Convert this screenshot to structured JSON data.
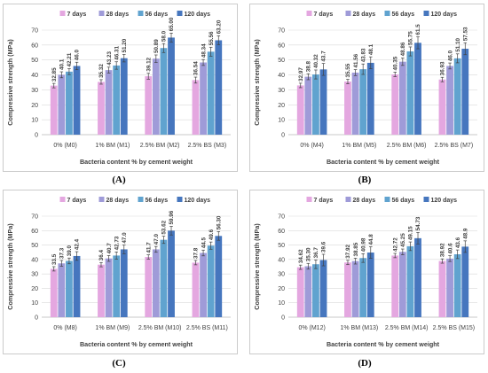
{
  "colors": {
    "7 days": "#e4a7e0",
    "28 days": "#9f9bd8",
    "56 days": "#60a3cf",
    "120 days": "#4676be"
  },
  "chart_data": [
    {
      "id": "A",
      "type": "bar",
      "caption": "(A)",
      "ylabel": "Compressive strength (MPa)",
      "xlabel": "Bacteria content % by cement weight",
      "ylim": [
        0,
        70
      ],
      "yticks": [
        0,
        10,
        20,
        30,
        40,
        50,
        60,
        70
      ],
      "grid": true,
      "legend": "top",
      "categories": [
        "0% (M0)",
        "1% BM (M1)",
        "2.5% BM (M2)",
        "2.5% BS (M3)"
      ],
      "series": [
        {
          "name": "7 days",
          "values": [
            32.85,
            35.32,
            39.12,
            36.54
          ],
          "labels": [
            "32.85",
            "35.32",
            "39.12",
            "36.54"
          ],
          "err": [
            1.5,
            1.5,
            2.0,
            2.0
          ]
        },
        {
          "name": "28 days",
          "values": [
            40.1,
            43.23,
            50.89,
            48.34
          ],
          "labels": [
            "40.1",
            "43.23",
            "50.89",
            "48.34"
          ],
          "err": [
            2.0,
            2.0,
            2.5,
            2.0
          ]
        },
        {
          "name": "56 days",
          "values": [
            42.21,
            46.31,
            58.0,
            55.56
          ],
          "labels": [
            "42.21",
            "46.31",
            "58.0",
            "55.56"
          ],
          "err": [
            2.0,
            2.5,
            3.0,
            3.0
          ]
        },
        {
          "name": "120 days",
          "values": [
            46.0,
            51.2,
            65.0,
            63.2
          ],
          "labels": [
            "46.0",
            "51.20",
            "65.00",
            "63.20"
          ],
          "err": [
            2.5,
            2.5,
            3.0,
            3.0
          ]
        }
      ]
    },
    {
      "id": "B",
      "type": "bar",
      "caption": "(B)",
      "ylabel": "Compressive strength (MPa)",
      "xlabel": "Bacteria content % by cement weight",
      "ylim": [
        0,
        70
      ],
      "yticks": [
        0,
        10,
        20,
        30,
        40,
        50,
        60,
        70
      ],
      "grid": true,
      "legend": "top",
      "categories": [
        "0% (M4)",
        "1% BM (M5)",
        "2.5% BM (M6)",
        "2.5% BS (M7)"
      ],
      "series": [
        {
          "name": "7 days",
          "values": [
            32.97,
            35.55,
            40.35,
            36.93
          ],
          "labels": [
            "32.97",
            "35.55",
            "40.35",
            "36.93"
          ],
          "err": [
            1.5,
            1.5,
            1.5,
            1.5
          ]
        },
        {
          "name": "28 days",
          "values": [
            38.8,
            41.56,
            48.86,
            46.0
          ],
          "labels": [
            "38.8",
            "41.56",
            "48.86",
            "46.0"
          ],
          "err": [
            2.0,
            2.0,
            2.5,
            2.0
          ]
        },
        {
          "name": "56 days",
          "values": [
            40.32,
            43.83,
            55.75,
            51.1
          ],
          "labels": [
            "40.32",
            "43.83",
            "55.75",
            "51.10"
          ],
          "err": [
            3.0,
            3.5,
            3.0,
            3.0
          ]
        },
        {
          "name": "120 days",
          "values": [
            43.7,
            48.1,
            61.5,
            57.53
          ],
          "labels": [
            "43.7",
            "48.1",
            "61.5",
            "57.53"
          ],
          "err": [
            4.0,
            4.0,
            4.0,
            4.0
          ]
        }
      ]
    },
    {
      "id": "C",
      "type": "bar",
      "caption": "(C)",
      "ylabel": "Compressive strength (MPa)",
      "xlabel": "Bacteria content % by cement weight",
      "ylim": [
        0,
        70
      ],
      "yticks": [
        0,
        10,
        20,
        30,
        40,
        50,
        60,
        70
      ],
      "grid": true,
      "legend": "top",
      "categories": [
        "0% (M8)",
        "1% BM (M9)",
        "2.5% BM (M10)",
        "2.5% BS (M11)"
      ],
      "series": [
        {
          "name": "7 days",
          "values": [
            33.5,
            36.4,
            41.7,
            37.8
          ],
          "labels": [
            "33.5",
            "36.4",
            "41.7",
            "37.8"
          ],
          "err": [
            1.5,
            1.5,
            1.5,
            1.5
          ]
        },
        {
          "name": "28 days",
          "values": [
            37.3,
            40.7,
            47.0,
            44.5
          ],
          "labels": [
            "37.3",
            "40.7",
            "47.0",
            "44.5"
          ],
          "err": [
            2.0,
            2.0,
            2.0,
            2.0
          ]
        },
        {
          "name": "56 days",
          "values": [
            39.0,
            42.73,
            53.62,
            49.6
          ],
          "labels": [
            "39.0",
            "42.73",
            "53.62",
            "49.6"
          ],
          "err": [
            2.0,
            2.5,
            2.5,
            2.5
          ]
        },
        {
          "name": "120 days",
          "values": [
            42.4,
            47.0,
            59.96,
            56.3
          ],
          "labels": [
            "42.4",
            "47.0",
            "59.96",
            "56.30"
          ],
          "err": [
            3.0,
            3.0,
            3.0,
            3.0
          ]
        }
      ]
    },
    {
      "id": "D",
      "type": "bar",
      "caption": "(D)",
      "ylabel": "Compressive strength (MPa)",
      "xlabel": "Bacteria content % by cement weight",
      "ylim": [
        0,
        70
      ],
      "yticks": [
        0,
        10,
        20,
        30,
        40,
        50,
        60,
        70
      ],
      "grid": true,
      "legend": "top",
      "categories": [
        "0% (M12)",
        "1% BM (M13)",
        "2.5% BM (M14)",
        "2.5% BS (M15)"
      ],
      "series": [
        {
          "name": "7 days",
          "values": [
            34.62,
            37.92,
            42.72,
            38.92
          ],
          "labels": [
            "34.62",
            "37.92",
            "42.72",
            "38.92"
          ],
          "err": [
            1.5,
            1.5,
            1.5,
            1.5
          ]
        },
        {
          "name": "28 days",
          "values": [
            35.3,
            38.85,
            45.25,
            40.6
          ],
          "labels": [
            "35.30",
            "38.85",
            "45.25",
            "40.6"
          ],
          "err": [
            2.0,
            2.0,
            2.0,
            2.0
          ]
        },
        {
          "name": "56 days",
          "values": [
            36.7,
            40.98,
            49.15,
            43.6
          ],
          "labels": [
            "36.7",
            "40.98",
            "49.15",
            "43.6"
          ],
          "err": [
            3.0,
            3.0,
            3.0,
            3.0
          ]
        },
        {
          "name": "120 days",
          "values": [
            39.6,
            44.8,
            54.73,
            48.9
          ],
          "labels": [
            "39.6",
            "44.8",
            "54.73",
            "48.9"
          ],
          "err": [
            4.0,
            4.0,
            4.0,
            4.0
          ]
        }
      ]
    }
  ]
}
